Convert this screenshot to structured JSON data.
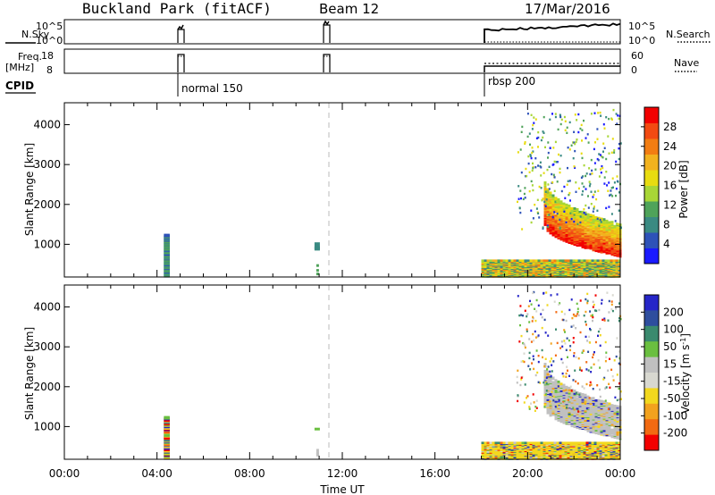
{
  "title": {
    "station": "Buckland Park (fitACF)",
    "beam": "Beam 12",
    "date": "17/Mar/2016"
  },
  "header_panels": {
    "nsky_label": "N.Sky",
    "nsky_ticks": [
      "10^5",
      "10^0"
    ],
    "nsearch_label": "N.Search",
    "nsearch_ticks": [
      "10^5",
      "10^0"
    ],
    "freq_label_1": "Freq.",
    "freq_label_2": "[MHz]",
    "freq_ticks": [
      "18",
      "8"
    ],
    "nave_label": "Nave",
    "nave_ticks": [
      "60",
      "0"
    ],
    "cpid_label": "CPID",
    "cpid_segments": [
      {
        "label": "normal 150",
        "start_hour": 4.3
      },
      {
        "label": "rbsp 200",
        "start_hour": 18.0
      }
    ]
  },
  "colors": {
    "power": [
      "#1a1aff",
      "#2e52b8",
      "#3a8a82",
      "#4fa35a",
      "#a8d636",
      "#e8dc10",
      "#f2b21e",
      "#f27d12",
      "#f24a12",
      "#f20000"
    ],
    "velocity": [
      "#2626c8",
      "#2e4e9e",
      "#3a8a6e",
      "#6abf40",
      "#c0c0c0",
      "#d8d8d0",
      "#f2d81e",
      "#f2a21e",
      "#f26a12",
      "#f20000"
    ]
  },
  "chart_data": [
    {
      "type": "heatmap",
      "name": "power",
      "xlabel": "",
      "ylabel": "Slant Range [km]",
      "x_range_hours": [
        0,
        24
      ],
      "ylim": [
        180,
        4550
      ],
      "yticks": [
        1000,
        2000,
        3000,
        4000
      ],
      "colorbar": {
        "label": "Power [dB]",
        "range": [
          0,
          32
        ],
        "ticks": [
          4,
          8,
          12,
          16,
          20,
          24,
          28
        ]
      },
      "observation_windows_hours": [
        [
          4.3,
          4.55
        ],
        [
          10.8,
          11.0
        ],
        [
          18.0,
          24.0
        ]
      ]
    },
    {
      "type": "heatmap",
      "name": "velocity",
      "xlabel": "Time UT",
      "ylabel": "Slant Range [km]",
      "xticks": [
        "00:00",
        "04:00",
        "08:00",
        "12:00",
        "16:00",
        "20:00",
        "00:00"
      ],
      "x_range_hours": [
        0,
        24
      ],
      "ylim": [
        180,
        4550
      ],
      "yticks": [
        1000,
        2000,
        3000,
        4000
      ],
      "colorbar": {
        "label": "Velocity [m s^-1]",
        "ticks": [
          "200",
          "100",
          "50",
          "15",
          "-15",
          "-50",
          "-100",
          "-200"
        ]
      },
      "observation_windows_hours": [
        [
          4.3,
          4.55
        ],
        [
          10.8,
          11.0
        ],
        [
          18.0,
          24.0
        ]
      ]
    }
  ]
}
